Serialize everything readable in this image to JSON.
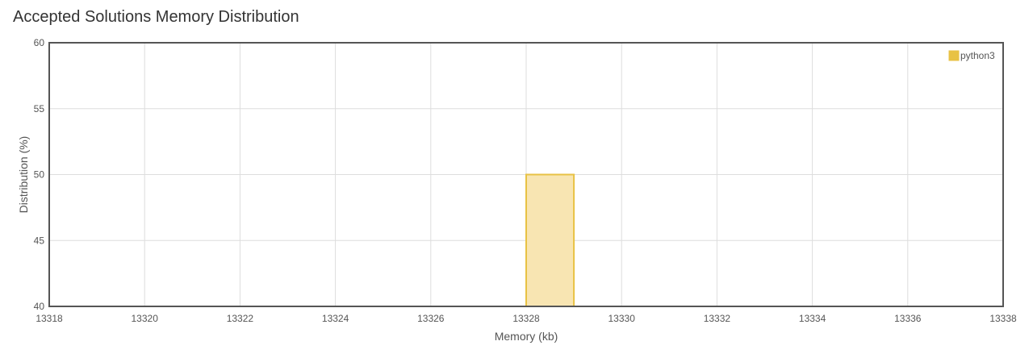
{
  "chart_data": {
    "type": "bar",
    "title": "Accepted Solutions Memory Distribution",
    "xlabel": "Memory (kb)",
    "ylabel": "Distribution (%)",
    "xlim": [
      13318,
      13338
    ],
    "ylim": [
      40,
      60
    ],
    "xticks": [
      13318,
      13320,
      13322,
      13324,
      13326,
      13328,
      13330,
      13332,
      13334,
      13336,
      13338
    ],
    "yticks": [
      40,
      45,
      50,
      55,
      60
    ],
    "grid": true,
    "legend": "top-right",
    "series": [
      {
        "name": "python3",
        "color": "#e8c244",
        "fill": "#f8e5b2",
        "bars": [
          {
            "x_start": 13328,
            "x_end": 13329,
            "value": 50
          }
        ]
      }
    ]
  }
}
